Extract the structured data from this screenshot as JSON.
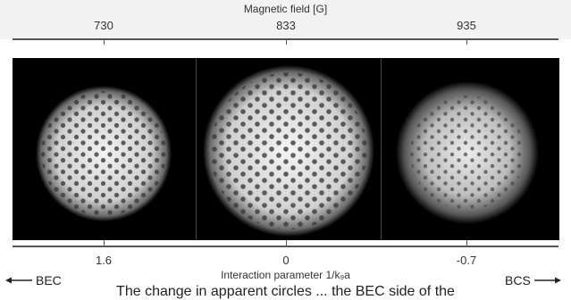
{
  "figure": {
    "top_axis": {
      "title": "Magnetic field [G]",
      "ticks": [
        "730",
        "833",
        "935"
      ]
    },
    "bottom_axis": {
      "title": "Interaction parameter 1/k₉a",
      "ticks": [
        "1.6",
        "0",
        "-0.7"
      ]
    },
    "left_arrow": {
      "label": "BEC",
      "icon": "arrow-left-icon"
    },
    "right_arrow": {
      "label": "BCS",
      "icon": "arrow-right-icon"
    },
    "caption": "The change in apparent circles ... the BEC side of the"
  }
}
